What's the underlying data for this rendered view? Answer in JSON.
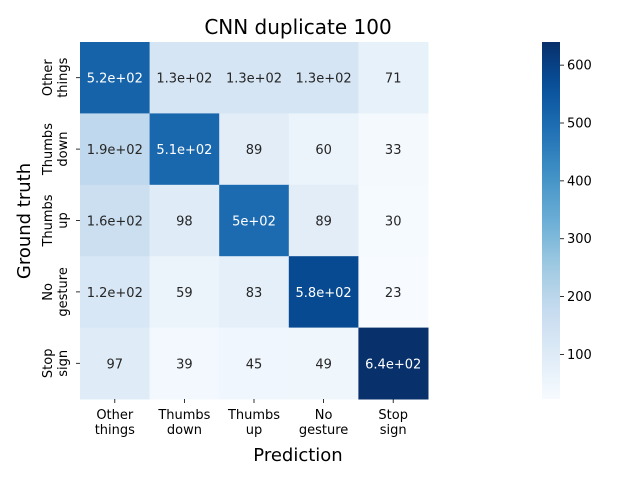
{
  "chart_data": {
    "type": "heatmap",
    "title": "CNN duplicate 100",
    "xlabel": "Prediction",
    "ylabel": "Ground truth",
    "x_categories": [
      [
        "Other",
        "things"
      ],
      [
        "Thumbs",
        "down"
      ],
      [
        "Thumbs",
        "up"
      ],
      [
        "No",
        "gesture"
      ],
      [
        "Stop",
        "sign"
      ]
    ],
    "y_categories": [
      [
        "Other",
        "things"
      ],
      [
        "Thumbs",
        "down"
      ],
      [
        "Thumbs",
        "up"
      ],
      [
        "No",
        "gesture"
      ],
      [
        "Stop",
        "sign"
      ]
    ],
    "values": [
      [
        520,
        130,
        130,
        130,
        71
      ],
      [
        190,
        510,
        89,
        60,
        33
      ],
      [
        160,
        98,
        500,
        89,
        30
      ],
      [
        120,
        59,
        83,
        580,
        23
      ],
      [
        97,
        39,
        45,
        49,
        640
      ]
    ],
    "labels": [
      [
        "5.2e+02",
        "1.3e+02",
        "1.3e+02",
        "1.3e+02",
        "71"
      ],
      [
        "1.9e+02",
        "5.1e+02",
        "89",
        "60",
        "33"
      ],
      [
        "1.6e+02",
        "98",
        "5e+02",
        "89",
        "30"
      ],
      [
        "1.2e+02",
        "59",
        "83",
        "5.8e+02",
        "23"
      ],
      [
        "97",
        "39",
        "45",
        "49",
        "6.4e+02"
      ]
    ],
    "colorbar": {
      "min": 23,
      "max": 640,
      "ticks": [
        100,
        200,
        300,
        400,
        500,
        600
      ],
      "colormap": "Blues"
    }
  }
}
